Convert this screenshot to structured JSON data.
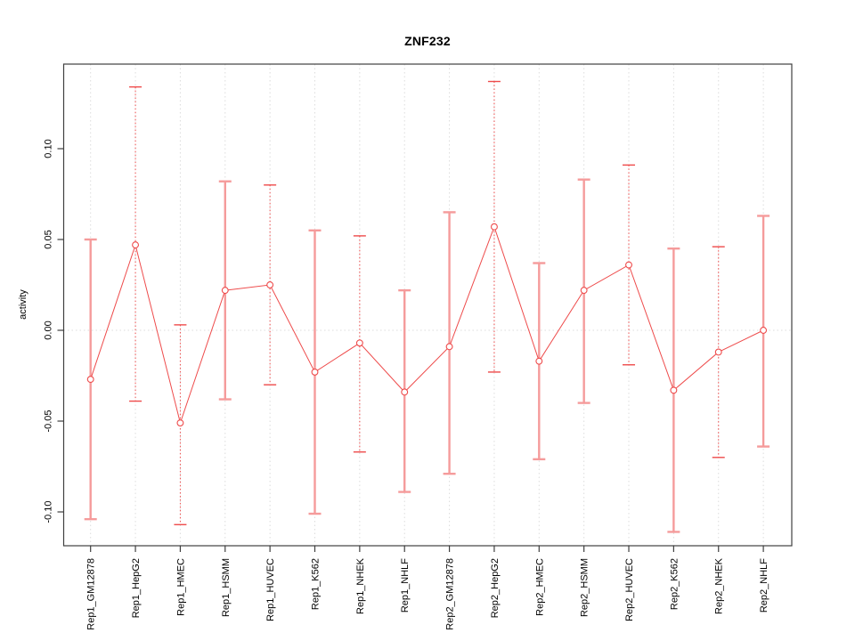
{
  "chart_data": {
    "type": "line",
    "title": "ZNF232",
    "xlabel": "",
    "ylabel": "activity",
    "categories": [
      "Rep1_GM12878",
      "Rep1_HepG2",
      "Rep1_HMEC",
      "Rep1_HSMM",
      "Rep1_HUVEC",
      "Rep1_K562",
      "Rep1_NHEK",
      "Rep1_NHLF",
      "Rep2_GM12878",
      "Rep2_HepG2",
      "Rep2_HMEC",
      "Rep2_HSMM",
      "Rep2_HUVEC",
      "Rep2_K562",
      "Rep2_NHEK",
      "Rep2_NHLF"
    ],
    "values": [
      -0.027,
      0.047,
      -0.051,
      0.022,
      0.025,
      -0.023,
      -0.007,
      -0.034,
      -0.009,
      0.057,
      -0.017,
      0.022,
      0.036,
      -0.033,
      -0.012,
      0.0
    ],
    "error_upper": [
      0.05,
      0.134,
      0.003,
      0.082,
      0.08,
      0.055,
      0.052,
      0.022,
      0.065,
      0.137,
      0.037,
      0.083,
      0.091,
      0.045,
      0.046,
      0.063
    ],
    "error_lower": [
      -0.104,
      -0.039,
      -0.107,
      -0.038,
      -0.03,
      -0.101,
      -0.067,
      -0.089,
      -0.079,
      -0.023,
      -0.071,
      -0.04,
      -0.019,
      -0.111,
      -0.07,
      -0.064
    ],
    "errorbar_styles": [
      "solid",
      "dotted",
      "dotted",
      "solid",
      "dotted",
      "solid",
      "dotted",
      "solid",
      "solid",
      "dotted",
      "solid",
      "solid",
      "dotted",
      "solid",
      "dotted",
      "solid"
    ],
    "ytick_values": [
      0.1,
      0.05,
      0.0,
      -0.05,
      -0.1
    ],
    "ytick_labels": [
      "0.10",
      "0.05",
      "0.00",
      "-0.05",
      "-0.10"
    ],
    "ylim": [
      -0.121,
      0.148
    ],
    "grid": "vertical-dotted-per-category-plus-zero-line",
    "legend": "none",
    "marker": "open-circle",
    "colors": {
      "series_red": "#EE4B4B",
      "errorbar_solid_pink": "#F59B9B",
      "grid_gray": "#DCDCDC",
      "box_border": "#3F3F3F",
      "text": "#000000",
      "background": "#FFFFFF"
    }
  }
}
